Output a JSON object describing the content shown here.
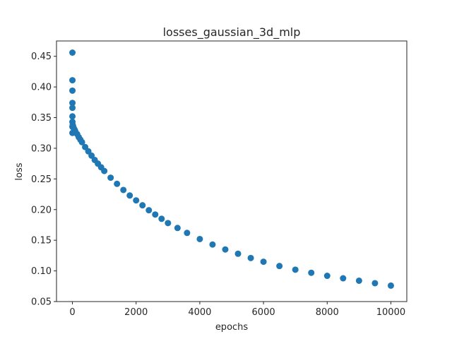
{
  "chart_data": {
    "type": "scatter",
    "title": "losses_gaussian_3d_mlp",
    "xlabel": "epochs",
    "ylabel": "loss",
    "xlim": [
      -500,
      10500
    ],
    "ylim": [
      0.05,
      0.475
    ],
    "xticks": [
      0,
      2000,
      4000,
      6000,
      8000,
      10000
    ],
    "xtick_labels": [
      "0",
      "2000",
      "4000",
      "6000",
      "8000",
      "10000"
    ],
    "yticks": [
      0.05,
      0.1,
      0.15,
      0.2,
      0.25,
      0.3,
      0.35,
      0.4,
      0.45
    ],
    "ytick_labels": [
      "0.05",
      "0.10",
      "0.15",
      "0.20",
      "0.25",
      "0.30",
      "0.35",
      "0.40",
      "0.45"
    ],
    "grid": false,
    "marker_color": "#1f77b4",
    "series": [
      {
        "x": [
          0,
          0,
          0,
          0,
          0,
          0,
          0,
          0,
          0,
          10,
          20,
          40,
          60,
          80,
          100,
          150,
          200,
          250,
          300,
          400,
          500,
          600,
          700,
          800,
          900,
          1000,
          1200,
          1400,
          1600,
          1800,
          2000,
          2200,
          2400,
          2600,
          2800,
          3000,
          3300,
          3600,
          4000,
          4400,
          4800,
          5200,
          5600,
          6000,
          6500,
          7000,
          7500,
          8000,
          8500,
          9000,
          9500,
          10000
        ],
        "y": [
          0.456,
          0.411,
          0.394,
          0.374,
          0.366,
          0.352,
          0.343,
          0.335,
          0.325,
          0.338,
          0.336,
          0.333,
          0.331,
          0.329,
          0.326,
          0.323,
          0.318,
          0.314,
          0.31,
          0.302,
          0.295,
          0.288,
          0.281,
          0.275,
          0.269,
          0.263,
          0.252,
          0.242,
          0.232,
          0.223,
          0.215,
          0.207,
          0.199,
          0.192,
          0.185,
          0.178,
          0.17,
          0.162,
          0.152,
          0.143,
          0.135,
          0.128,
          0.121,
          0.115,
          0.108,
          0.102,
          0.097,
          0.092,
          0.088,
          0.084,
          0.08,
          0.076
        ]
      }
    ]
  }
}
